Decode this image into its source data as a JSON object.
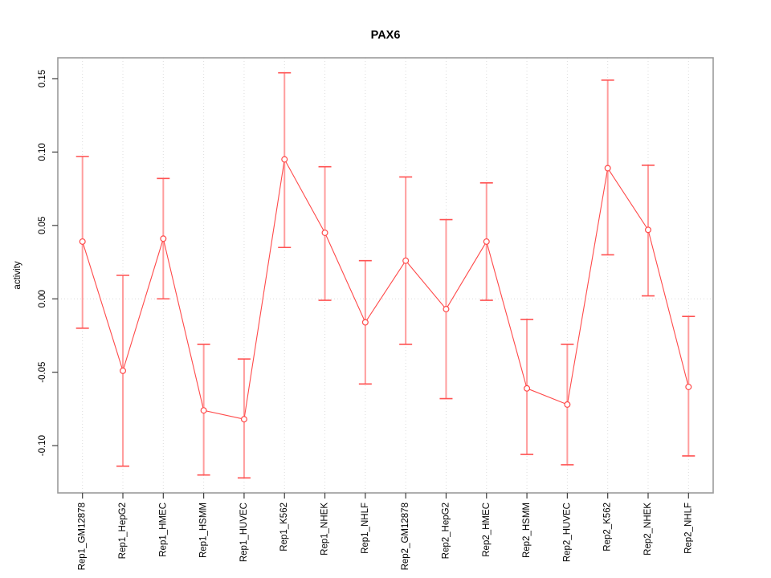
{
  "chart_data": {
    "type": "line",
    "title": "PAX6",
    "xlabel": "",
    "ylabel": "activity",
    "legend_position": "none",
    "grid": "vertical dotted gridline at every category; horizontal dotted line at y=0",
    "categories": [
      "Rep1_GM12878",
      "Rep1_HepG2",
      "Rep1_HMEC",
      "Rep1_HSMM",
      "Rep1_HUVEC",
      "Rep1_K562",
      "Rep1_NHEK",
      "Rep1_NHLF",
      "Rep2_GM12878",
      "Rep2_HepG2",
      "Rep2_HMEC",
      "Rep2_HSMM",
      "Rep2_HUVEC",
      "Rep2_K562",
      "Rep2_NHEK",
      "Rep2_NHLF"
    ],
    "series": [
      {
        "name": "activity",
        "marker": "open-circle",
        "values": [
          0.039,
          -0.049,
          0.041,
          -0.076,
          -0.082,
          0.095,
          0.045,
          -0.016,
          0.026,
          -0.007,
          0.039,
          -0.061,
          -0.072,
          0.089,
          0.047,
          -0.06
        ],
        "error_low": [
          -0.02,
          -0.114,
          0.0,
          -0.12,
          -0.122,
          0.035,
          -0.001,
          -0.058,
          -0.031,
          -0.068,
          -0.001,
          -0.106,
          -0.113,
          0.03,
          0.002,
          -0.107
        ],
        "error_high": [
          0.097,
          0.016,
          0.082,
          -0.031,
          -0.041,
          0.154,
          0.09,
          0.026,
          0.083,
          0.054,
          0.079,
          -0.014,
          -0.031,
          0.149,
          0.091,
          -0.012
        ]
      }
    ],
    "yticks": [
      -0.1,
      -0.05,
      0.0,
      0.05,
      0.1,
      0.15
    ],
    "ytick_labels": [
      "-0.10",
      "-0.05",
      "0.00",
      "0.05",
      "0.10",
      "0.15"
    ],
    "ylim": [
      -0.1322,
      0.1642
    ],
    "colors": {
      "line": "#ff4a4a",
      "marker": "#ff4a4a",
      "error_bar": "#ff9d9d",
      "error_cap": "#ff5252",
      "gridline": "#dcdcdc",
      "zero_line": "#dcdcdc",
      "plot_border": "#9b9b9b",
      "tick": "#3d3d3d",
      "text": "#000000",
      "background": "#ffffff"
    }
  }
}
